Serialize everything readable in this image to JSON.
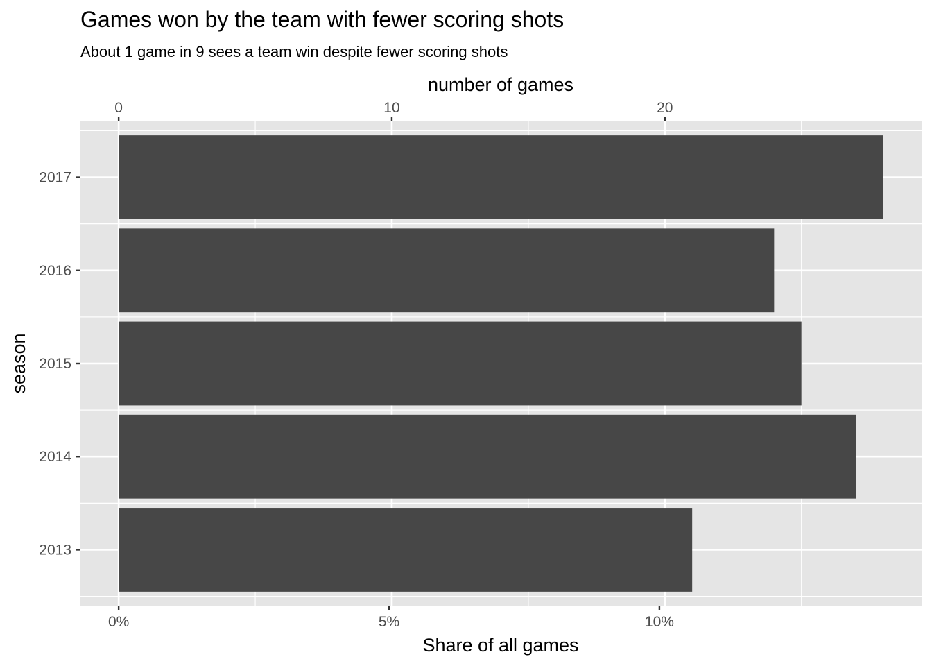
{
  "chart_data": {
    "type": "bar",
    "orientation": "horizontal",
    "title": "Games won by the team with fewer scoring shots",
    "subtitle": "About 1 game in 9 sees a team win despite fewer scoring shots",
    "xlabel": "Share of all games",
    "x2label": "number of games",
    "ylabel": "season",
    "categories": [
      "2017",
      "2016",
      "2015",
      "2014",
      "2013"
    ],
    "values": [
      28,
      24,
      25,
      27,
      21
    ],
    "x2_ticks": [
      0,
      10,
      20
    ],
    "x_ticks": [
      0,
      5,
      10
    ],
    "x_tick_labels": [
      "0%",
      "5%",
      "10%"
    ],
    "x2_tick_labels": [
      "0",
      "10",
      "20"
    ],
    "xlim_games": [
      -1.4,
      29.4
    ],
    "total_games_per_season": 198,
    "grid": true,
    "legend": "none",
    "colors": {
      "bar": "#474747",
      "panel": "#e5e5e5",
      "grid": "#ffffff",
      "tick_text": "#4d4d4d",
      "tick_mark": "#333333"
    }
  }
}
